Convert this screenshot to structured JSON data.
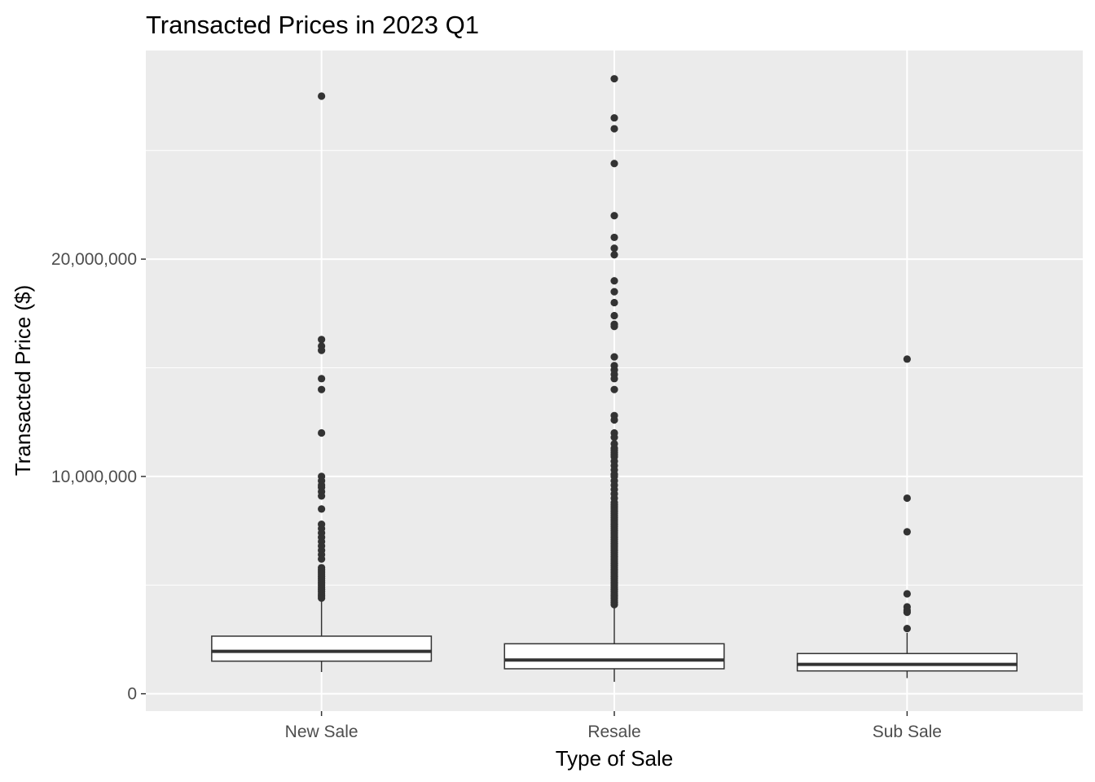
{
  "chart_data": {
    "type": "boxplot",
    "title": "Transacted Prices in 2023 Q1",
    "xlabel": "Type of Sale",
    "ylabel": "Transacted Price ($)",
    "ylim": [
      -800000,
      29600000
    ],
    "y_ticks": [
      0,
      10000000,
      20000000
    ],
    "y_tick_labels": [
      "0",
      "10,000,000",
      "20,000,000"
    ],
    "grid": true,
    "panel_background": "#ebebeb",
    "categories": [
      "New Sale",
      "Resale",
      "Sub Sale"
    ],
    "boxes": [
      {
        "category": "New Sale",
        "whisker_low": 1000000,
        "q1": 1500000,
        "median": 1950000,
        "q3": 2650000,
        "whisker_high": 4300000,
        "outliers": [
          27500000,
          16300000,
          16000000,
          15800000,
          14500000,
          14000000,
          12000000,
          10000000,
          9800000,
          9600000,
          9500000,
          9300000,
          9100000,
          8500000,
          7800000,
          7600000,
          7400000,
          7200000,
          7000000,
          6800000,
          6600000,
          6400000,
          6200000,
          5800000,
          5700000,
          5600000,
          5500000,
          5400000,
          5300000,
          5200000,
          5100000,
          5000000,
          4900000,
          4800000,
          4700000,
          4600000,
          4500000,
          4400000
        ]
      },
      {
        "category": "Resale",
        "whisker_low": 550000,
        "q1": 1150000,
        "median": 1550000,
        "q3": 2300000,
        "whisker_high": 4000000,
        "outliers": [
          28300000,
          26500000,
          26000000,
          24400000,
          22000000,
          21000000,
          20500000,
          20200000,
          19000000,
          18500000,
          18000000,
          17400000,
          17000000,
          16900000,
          15500000,
          15100000,
          14900000,
          14700000,
          14500000,
          14000000,
          12800000,
          12600000,
          12000000,
          11800000,
          11500000,
          11300000,
          11200000,
          11100000,
          11000000,
          10900000,
          10700000,
          10500000,
          10300000,
          10100000,
          10000000,
          9800000,
          9600000,
          9400000,
          9200000,
          9000000,
          8800000,
          8700000,
          8600000,
          8500000,
          8400000,
          8300000,
          8200000,
          8100000,
          8000000,
          7900000,
          7800000,
          7700000,
          7600000,
          7500000,
          7400000,
          7300000,
          7200000,
          7100000,
          7000000,
          6900000,
          6800000,
          6700000,
          6600000,
          6500000,
          6400000,
          6300000,
          6200000,
          6100000,
          6000000,
          5900000,
          5800000,
          5700000,
          5600000,
          5500000,
          5400000,
          5300000,
          5200000,
          5100000,
          5000000,
          4900000,
          4800000,
          4700000,
          4600000,
          4500000,
          4400000,
          4300000,
          4200000,
          4100000
        ]
      },
      {
        "category": "Sub Sale",
        "whisker_low": 720000,
        "q1": 1050000,
        "median": 1350000,
        "q3": 1850000,
        "whisker_high": 2800000,
        "outliers": [
          15400000,
          9000000,
          7450000,
          4600000,
          4000000,
          3850000,
          3750000,
          3000000
        ]
      }
    ]
  }
}
